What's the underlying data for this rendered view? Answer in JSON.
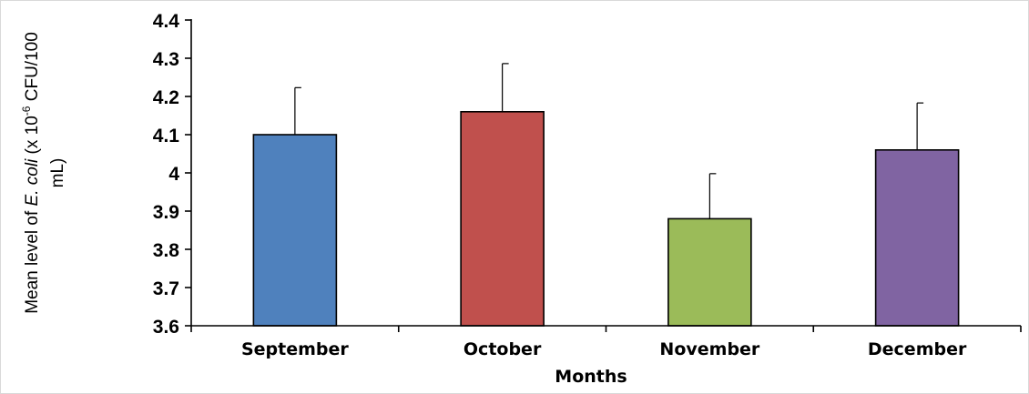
{
  "chart_data": {
    "type": "bar",
    "categories": [
      "September",
      "October",
      "November",
      "December"
    ],
    "values": [
      4.1,
      4.16,
      3.88,
      4.06
    ],
    "error_upper": [
      0.123,
      0.126,
      0.118,
      0.123
    ],
    "colors": [
      "#4f81bd",
      "#c0504d",
      "#9bbb59",
      "#8064a2"
    ],
    "xlabel": "Months",
    "ylabel": {
      "pre": "Mean level of ",
      "italic": "E. coli",
      "mid": " (x 10",
      "sup": "-6",
      "post1": " CFU/100",
      "post2": "mL)"
    },
    "ylim": [
      3.6,
      4.4
    ],
    "yticks": [
      "3.6",
      "3.7",
      "3.8",
      "3.9",
      "4",
      "4.1",
      "4.2",
      "4.3",
      "4.4"
    ],
    "grid": false,
    "legend": "none"
  }
}
